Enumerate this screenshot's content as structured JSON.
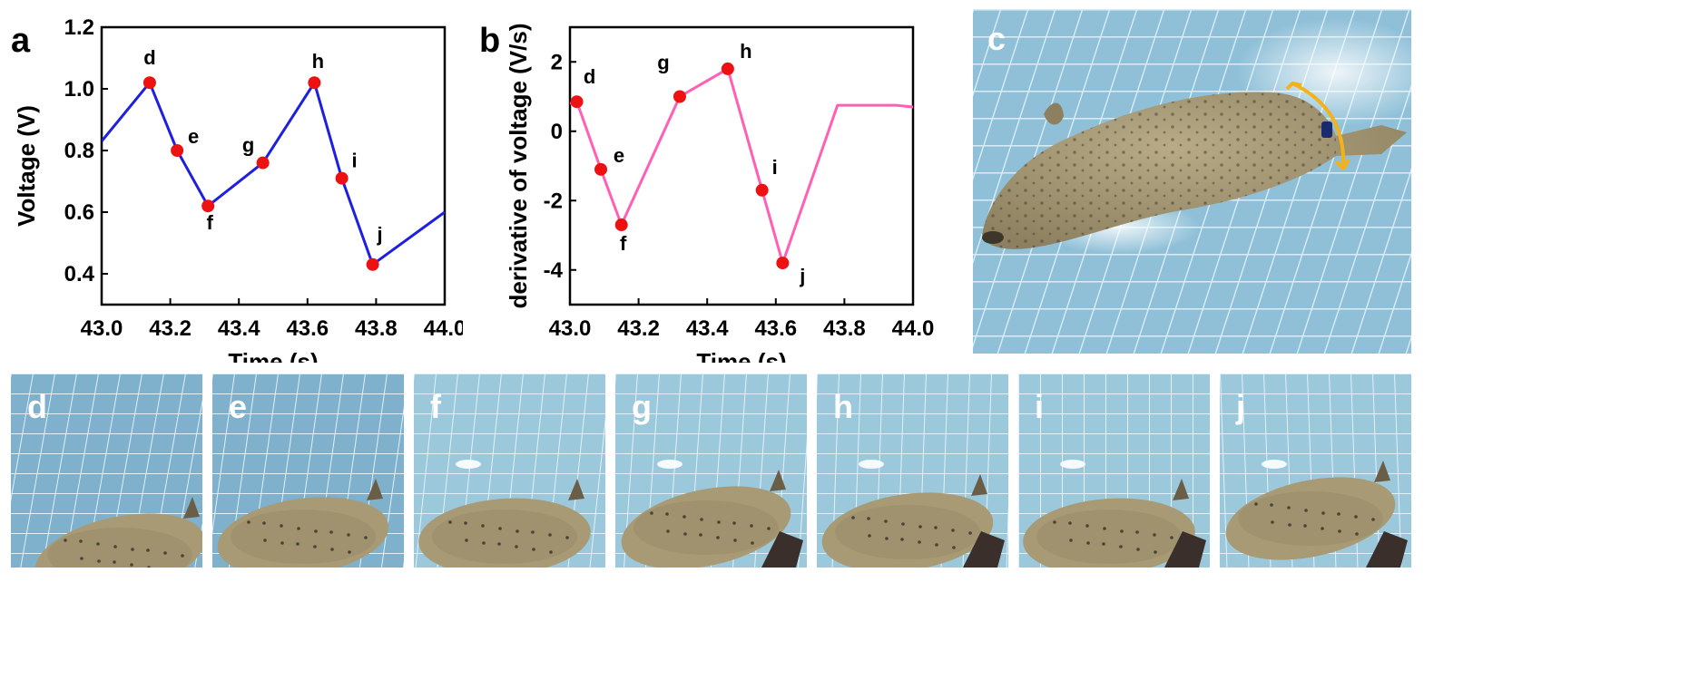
{
  "colors": {
    "voltage_line": "#1f1fe0",
    "derivative_line": "#ff5fb4",
    "marker": "#ee1111",
    "arrow": "#f4b21a",
    "pool_tile": "#8fc0d8",
    "pool_grout": "#dbeef6",
    "seal_body": "#a89a74",
    "seal_spots": "#4a4436"
  },
  "panels": {
    "a": "a",
    "b": "b",
    "c": "c",
    "thumbs": [
      "d",
      "e",
      "f",
      "g",
      "h",
      "i",
      "j"
    ]
  },
  "chart_data": [
    {
      "type": "line",
      "panel": "a",
      "xlabel": "Time (s)",
      "ylabel": "Voltage (V)",
      "xlim": [
        43.0,
        44.0
      ],
      "ylim": [
        0.3,
        1.2
      ],
      "xticks": [
        "43.0",
        "43.2",
        "43.4",
        "43.6",
        "43.8",
        "44.0"
      ],
      "yticks": [
        "0.4",
        "0.6",
        "0.8",
        "1.0",
        "1.2"
      ],
      "x": [
        43.0,
        43.14,
        43.22,
        43.31,
        43.47,
        43.62,
        43.7,
        43.79,
        44.0
      ],
      "y": [
        0.83,
        1.02,
        0.8,
        0.62,
        0.76,
        1.02,
        0.71,
        0.43,
        0.6
      ],
      "points": [
        {
          "label": "d",
          "x": 43.14,
          "y": 1.02
        },
        {
          "label": "e",
          "x": 43.22,
          "y": 0.8
        },
        {
          "label": "f",
          "x": 43.31,
          "y": 0.62
        },
        {
          "label": "g",
          "x": 43.47,
          "y": 0.76
        },
        {
          "label": "h",
          "x": 43.62,
          "y": 1.02
        },
        {
          "label": "i",
          "x": 43.7,
          "y": 0.71
        },
        {
          "label": "j",
          "x": 43.79,
          "y": 0.43
        }
      ]
    },
    {
      "type": "line",
      "panel": "b",
      "xlabel": "Time (s)",
      "ylabel": "derivative of voltage (V/s)",
      "xlim": [
        43.0,
        44.0
      ],
      "ylim": [
        -5,
        3
      ],
      "xticks": [
        "43.0",
        "43.2",
        "43.4",
        "43.6",
        "43.8",
        "44.0"
      ],
      "yticks": [
        "-4",
        "-2",
        "0",
        "2"
      ],
      "x": [
        43.0,
        43.02,
        43.09,
        43.15,
        43.32,
        43.46,
        43.56,
        43.62,
        43.78,
        43.95,
        44.0
      ],
      "y": [
        0.8,
        0.85,
        -1.1,
        -2.7,
        1.0,
        1.8,
        -1.7,
        -3.8,
        0.75,
        0.75,
        0.7
      ],
      "points": [
        {
          "label": "d",
          "x": 43.02,
          "y": 0.85
        },
        {
          "label": "e",
          "x": 43.09,
          "y": -1.1
        },
        {
          "label": "f",
          "x": 43.15,
          "y": -2.7
        },
        {
          "label": "g",
          "x": 43.32,
          "y": 1.0
        },
        {
          "label": "h",
          "x": 43.46,
          "y": 1.8
        },
        {
          "label": "i",
          "x": 43.56,
          "y": -1.7
        },
        {
          "label": "j",
          "x": 43.62,
          "y": -3.8
        }
      ]
    }
  ]
}
